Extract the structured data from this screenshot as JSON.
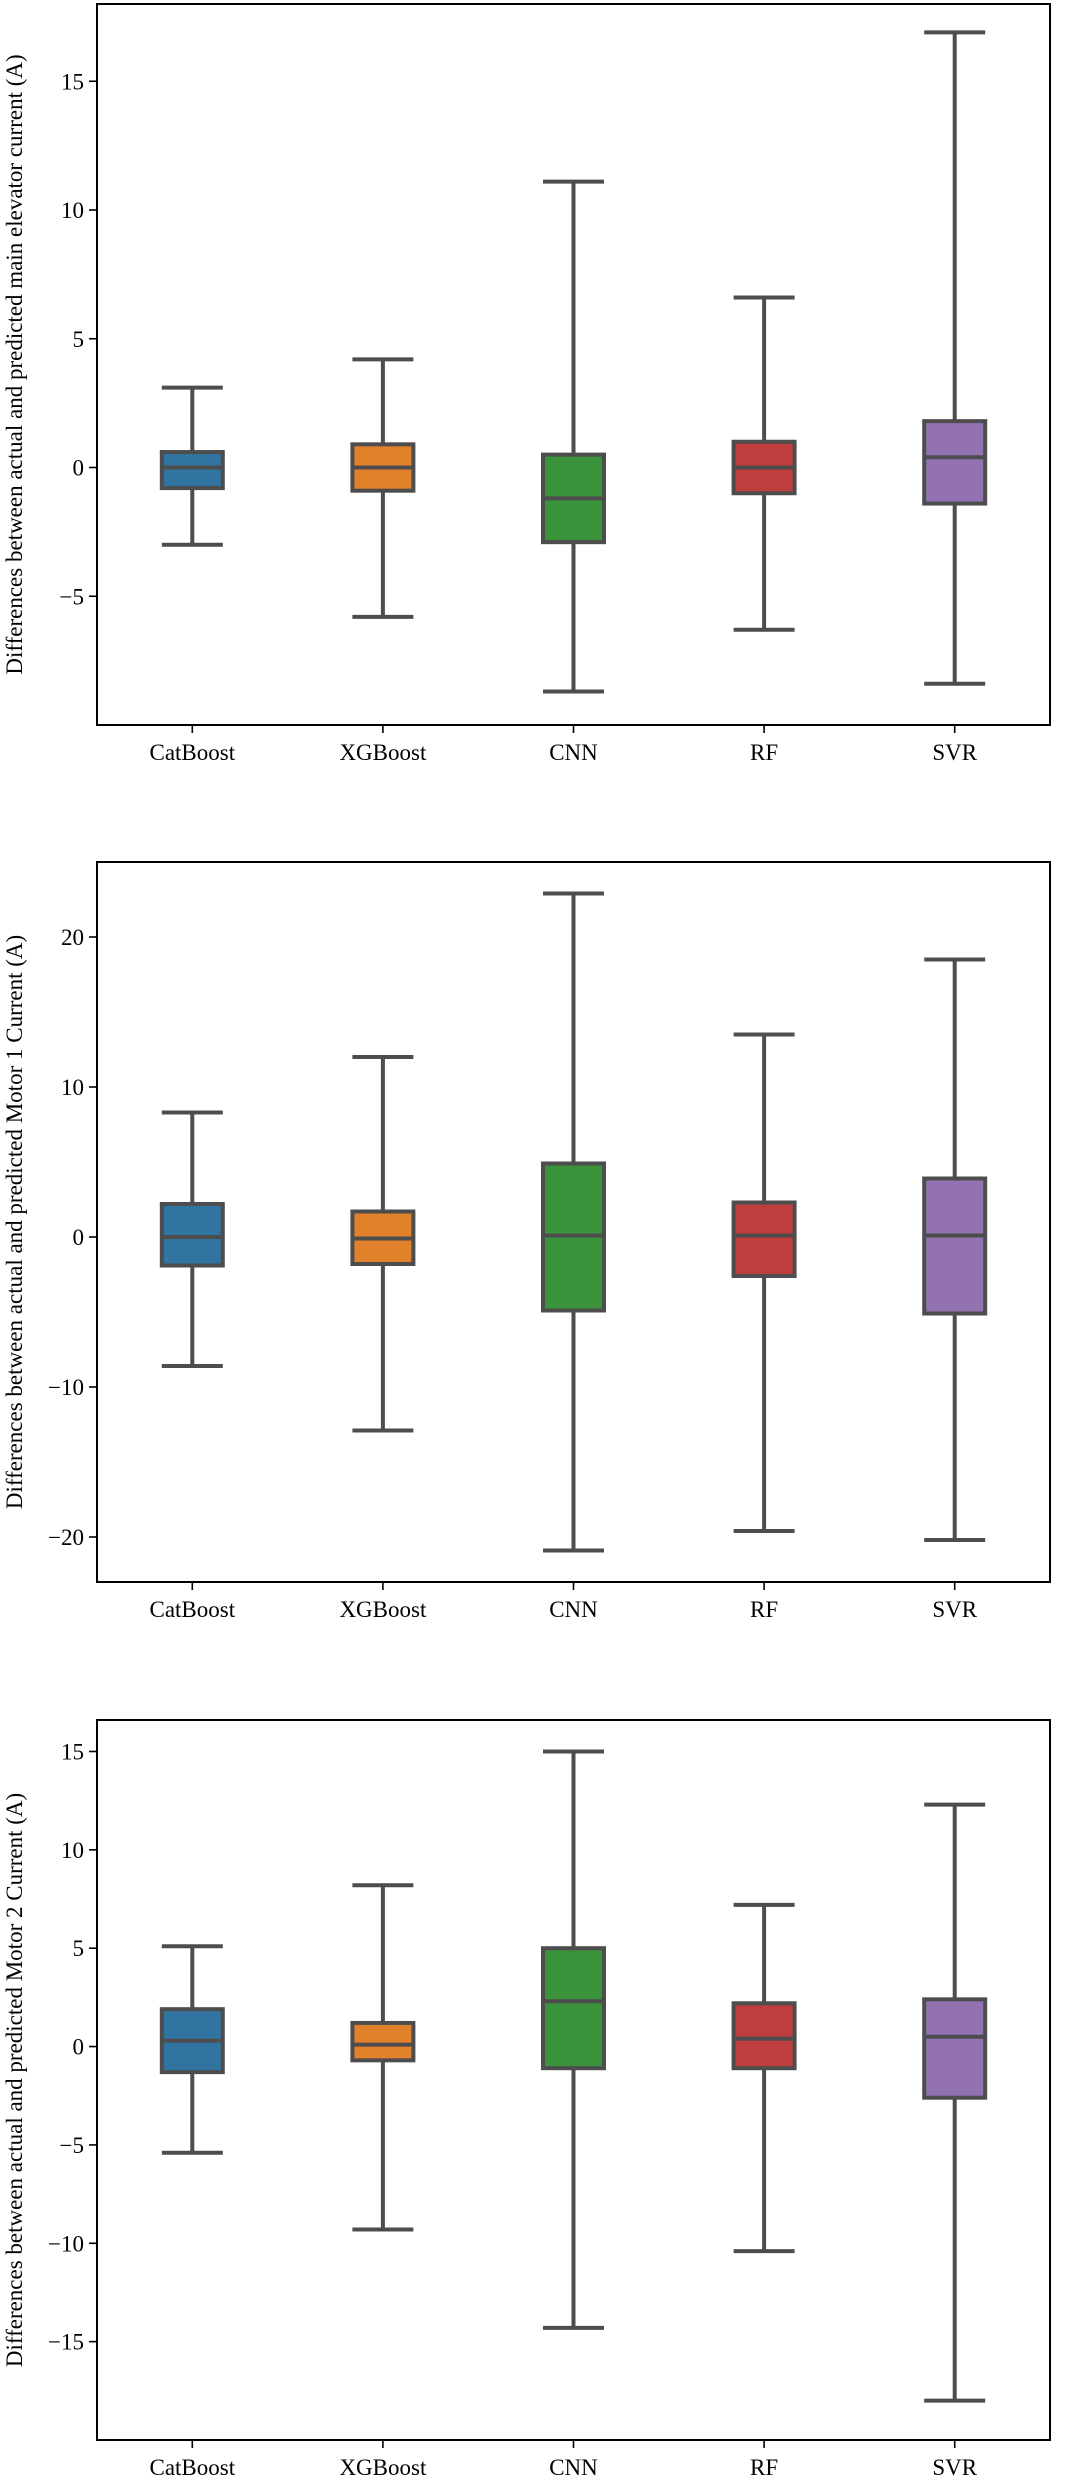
{
  "chart_data": [
    {
      "type": "box",
      "ylabel": "Differences between actual and predicted main elevator current (A)",
      "categories": [
        "CatBoost",
        "XGBoost",
        "CNN",
        "RF",
        "SVR"
      ],
      "colors": [
        "#3274a1",
        "#e1812c",
        "#3a923a",
        "#c03d3e",
        "#9372b2"
      ],
      "ylim": [
        -10,
        18
      ],
      "yticks": [
        -5,
        0,
        5,
        10,
        15
      ],
      "boxes": [
        {
          "name": "CatBoost",
          "min": -3.0,
          "q1": -0.8,
          "median": 0.0,
          "q3": 0.6,
          "max": 3.1
        },
        {
          "name": "XGBoost",
          "min": -5.8,
          "q1": -0.9,
          "median": 0.0,
          "q3": 0.9,
          "max": 4.2
        },
        {
          "name": "CNN",
          "min": -8.7,
          "q1": -2.9,
          "median": -1.2,
          "q3": 0.5,
          "max": 11.1
        },
        {
          "name": "RF",
          "min": -6.3,
          "q1": -1.0,
          "median": 0.0,
          "q3": 1.0,
          "max": 6.6
        },
        {
          "name": "SVR",
          "min": -8.4,
          "q1": -1.4,
          "median": 0.4,
          "q3": 1.8,
          "max": 16.9
        }
      ]
    },
    {
      "type": "box",
      "ylabel": "Differences between actual and predicted Motor 1 Current (A)",
      "categories": [
        "CatBoost",
        "XGBoost",
        "CNN",
        "RF",
        "SVR"
      ],
      "colors": [
        "#3274a1",
        "#e1812c",
        "#3a923a",
        "#c03d3e",
        "#9372b2"
      ],
      "ylim": [
        -23,
        25
      ],
      "yticks": [
        -20,
        -10,
        0,
        10,
        20
      ],
      "boxes": [
        {
          "name": "CatBoost",
          "min": -8.6,
          "q1": -1.9,
          "median": 0.0,
          "q3": 2.2,
          "max": 8.3
        },
        {
          "name": "XGBoost",
          "min": -12.9,
          "q1": -1.8,
          "median": -0.1,
          "q3": 1.7,
          "max": 12.0
        },
        {
          "name": "CNN",
          "min": -20.9,
          "q1": -4.9,
          "median": 0.1,
          "q3": 4.9,
          "max": 22.9
        },
        {
          "name": "RF",
          "min": -19.6,
          "q1": -2.6,
          "median": 0.1,
          "q3": 2.3,
          "max": 13.5
        },
        {
          "name": "SVR",
          "min": -20.2,
          "q1": -5.1,
          "median": 0.1,
          "q3": 3.9,
          "max": 18.5
        }
      ]
    },
    {
      "type": "box",
      "ylabel": "Differences between actual and predicted Motor 2 Current (A)",
      "categories": [
        "CatBoost",
        "XGBoost",
        "CNN",
        "RF",
        "SVR"
      ],
      "colors": [
        "#3274a1",
        "#e1812c",
        "#3a923a",
        "#c03d3e",
        "#9372b2"
      ],
      "ylim": [
        -20,
        16.6
      ],
      "yticks": [
        -15,
        -10,
        -5,
        0,
        5,
        10,
        15
      ],
      "boxes": [
        {
          "name": "CatBoost",
          "min": -5.4,
          "q1": -1.3,
          "median": 0.3,
          "q3": 1.9,
          "max": 5.1
        },
        {
          "name": "XGBoost",
          "min": -9.3,
          "q1": -0.7,
          "median": 0.1,
          "q3": 1.2,
          "max": 8.2
        },
        {
          "name": "CNN",
          "min": -14.3,
          "q1": -1.1,
          "median": 2.3,
          "q3": 5.0,
          "max": 15.0
        },
        {
          "name": "RF",
          "min": -10.4,
          "q1": -1.1,
          "median": 0.4,
          "q3": 2.2,
          "max": 7.2
        },
        {
          "name": "SVR",
          "min": -18.0,
          "q1": -2.6,
          "median": 0.5,
          "q3": 2.4,
          "max": 12.3
        }
      ]
    }
  ]
}
